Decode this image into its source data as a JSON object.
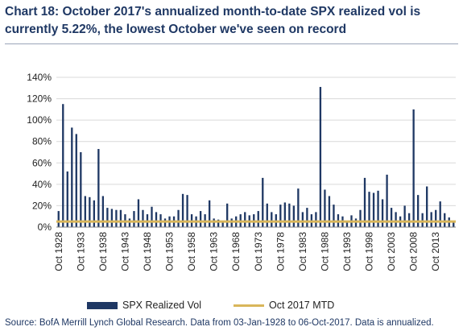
{
  "title": "Chart 18: October 2017's annualized month-to-date SPX realized vol is currently 5.22%, the lowest October we've seen on record",
  "source": "Source: BofA Merrill Lynch Global Research. Data from 03-Jan-1928 to 06-Oct-2017. Data is annualized.",
  "colors": {
    "bar": "#1f3864",
    "mtd_line": "#d9b65a",
    "grid": "#d9d9d9",
    "title": "#1f3864"
  },
  "chart_data": {
    "type": "bar",
    "categories": [
      "Oct 1928",
      "Oct 1929",
      "Oct 1930",
      "Oct 1931",
      "Oct 1932",
      "Oct 1933",
      "Oct 1934",
      "Oct 1935",
      "Oct 1936",
      "Oct 1937",
      "Oct 1938",
      "Oct 1939",
      "Oct 1940",
      "Oct 1941",
      "Oct 1942",
      "Oct 1943",
      "Oct 1944",
      "Oct 1945",
      "Oct 1946",
      "Oct 1947",
      "Oct 1948",
      "Oct 1949",
      "Oct 1950",
      "Oct 1951",
      "Oct 1952",
      "Oct 1953",
      "Oct 1954",
      "Oct 1955",
      "Oct 1956",
      "Oct 1957",
      "Oct 1958",
      "Oct 1959",
      "Oct 1960",
      "Oct 1961",
      "Oct 1962",
      "Oct 1963",
      "Oct 1964",
      "Oct 1965",
      "Oct 1966",
      "Oct 1967",
      "Oct 1968",
      "Oct 1969",
      "Oct 1970",
      "Oct 1971",
      "Oct 1972",
      "Oct 1973",
      "Oct 1974",
      "Oct 1975",
      "Oct 1976",
      "Oct 1977",
      "Oct 1978",
      "Oct 1979",
      "Oct 1980",
      "Oct 1981",
      "Oct 1982",
      "Oct 1983",
      "Oct 1984",
      "Oct 1985",
      "Oct 1986",
      "Oct 1987",
      "Oct 1988",
      "Oct 1989",
      "Oct 1990",
      "Oct 1991",
      "Oct 1992",
      "Oct 1993",
      "Oct 1994",
      "Oct 1995",
      "Oct 1996",
      "Oct 1997",
      "Oct 1998",
      "Oct 1999",
      "Oct 2000",
      "Oct 2001",
      "Oct 2002",
      "Oct 2003",
      "Oct 2004",
      "Oct 2005",
      "Oct 2006",
      "Oct 2007",
      "Oct 2008",
      "Oct 2009",
      "Oct 2010",
      "Oct 2011",
      "Oct 2012",
      "Oct 2013",
      "Oct 2014",
      "Oct 2015",
      "Oct 2016",
      "Oct 2017"
    ],
    "tick_labels": [
      "Oct 1928",
      "Oct 1933",
      "Oct 1938",
      "Oct 1943",
      "Oct 1948",
      "Oct 1953",
      "Oct 1958",
      "Oct 1963",
      "Oct 1968",
      "Oct 1973",
      "Oct 1978",
      "Oct 1983",
      "Oct 1988",
      "Oct 1993",
      "Oct 1998",
      "Oct 2003",
      "Oct 2008",
      "Oct 2013"
    ],
    "series": [
      {
        "name": "SPX Realized Vol",
        "values": [
          15,
          115,
          52,
          93,
          87,
          70,
          29,
          28,
          25,
          73,
          29,
          18,
          17,
          16,
          16,
          12,
          8,
          15,
          26,
          16,
          12,
          19,
          14,
          12,
          8,
          10,
          10,
          16,
          31,
          30,
          12,
          10,
          15,
          12,
          25,
          8,
          7,
          6,
          22,
          8,
          10,
          12,
          14,
          11,
          12,
          15,
          46,
          22,
          14,
          12,
          21,
          23,
          22,
          20,
          36,
          14,
          18,
          12,
          14,
          131,
          35,
          29,
          21,
          12,
          10,
          6,
          11,
          8,
          16,
          46,
          33,
          32,
          34,
          26,
          49,
          18,
          14,
          10,
          20,
          13,
          110,
          30,
          13,
          38,
          14,
          16,
          24,
          13,
          9,
          5.22
        ]
      },
      {
        "name": "Oct 2017 MTD",
        "value": 5.22
      }
    ],
    "ylim": [
      0,
      140
    ],
    "yticks": [
      0,
      20,
      40,
      60,
      80,
      100,
      120,
      140
    ],
    "y_format": "percent",
    "grid": true,
    "legend": "bottom"
  }
}
